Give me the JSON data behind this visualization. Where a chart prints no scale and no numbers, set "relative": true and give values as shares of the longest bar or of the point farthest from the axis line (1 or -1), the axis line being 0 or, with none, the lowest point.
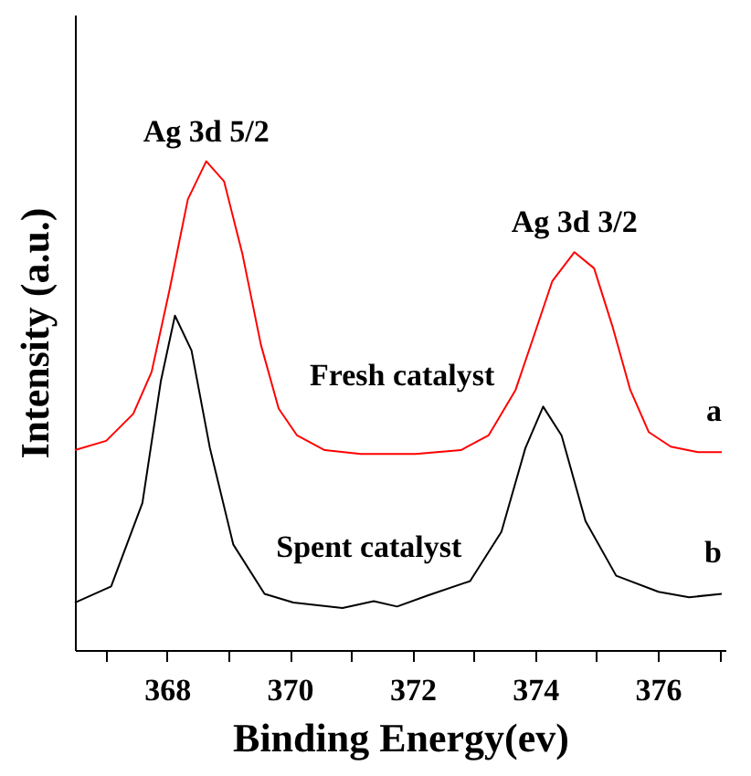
{
  "chart_data": {
    "type": "line",
    "relative": true,
    "xlabel": "Binding Energy(ev)",
    "ylabel": "Intensity (a.u.)",
    "xlim": [
      366.5,
      377.1
    ],
    "xticks": [
      {
        "value": 367,
        "label": null
      },
      368,
      {
        "value": 369,
        "label": null
      },
      370,
      {
        "value": 371,
        "label": null
      },
      372,
      {
        "value": 373,
        "label": null
      },
      374,
      {
        "value": 375,
        "label": null
      },
      376,
      {
        "value": 377,
        "label": null
      }
    ],
    "tick_labels": "x",
    "grid": false,
    "legend": false,
    "marker": "none",
    "line_style": "solid",
    "series": [
      {
        "name": "a",
        "color": "#ff0000",
        "x": [
          366.5,
          367.01,
          367.45,
          367.75,
          368.04,
          368.34,
          368.64,
          368.93,
          369.23,
          369.53,
          369.82,
          370.12,
          370.57,
          371.16,
          372.05,
          372.79,
          373.24,
          373.68,
          373.98,
          374.28,
          374.64,
          374.96,
          375.26,
          375.55,
          375.85,
          376.21,
          376.65,
          377.04
        ],
        "values": [
          0.409,
          0.428,
          0.483,
          0.569,
          0.736,
          0.922,
          1.0,
          0.959,
          0.81,
          0.625,
          0.494,
          0.439,
          0.409,
          0.401,
          0.401,
          0.409,
          0.439,
          0.532,
          0.643,
          0.755,
          0.814,
          0.781,
          0.662,
          0.532,
          0.446,
          0.416,
          0.405,
          0.405
        ]
      },
      {
        "name": "b",
        "color": "#000000",
        "x": [
          366.5,
          367.09,
          367.6,
          367.9,
          368.13,
          368.4,
          368.7,
          369.08,
          369.59,
          370.06,
          370.86,
          371.37,
          371.75,
          372.26,
          372.94,
          373.45,
          373.84,
          374.13,
          374.43,
          374.82,
          375.32,
          376.01,
          376.51,
          377.04
        ],
        "values": [
          0.097,
          0.13,
          0.301,
          0.55,
          0.684,
          0.613,
          0.413,
          0.216,
          0.115,
          0.097,
          0.086,
          0.1,
          0.089,
          0.112,
          0.141,
          0.242,
          0.413,
          0.498,
          0.439,
          0.264,
          0.152,
          0.119,
          0.108,
          0.115
        ]
      }
    ],
    "annotations": [
      {
        "text": "Ag 3d 5/2",
        "x": 368.64,
        "y": 1.0
      },
      {
        "text": "Ag 3d 3/2",
        "x": 374.64,
        "y": 0.814
      },
      "Fresh catalyst",
      "Spent catalyst"
    ]
  }
}
